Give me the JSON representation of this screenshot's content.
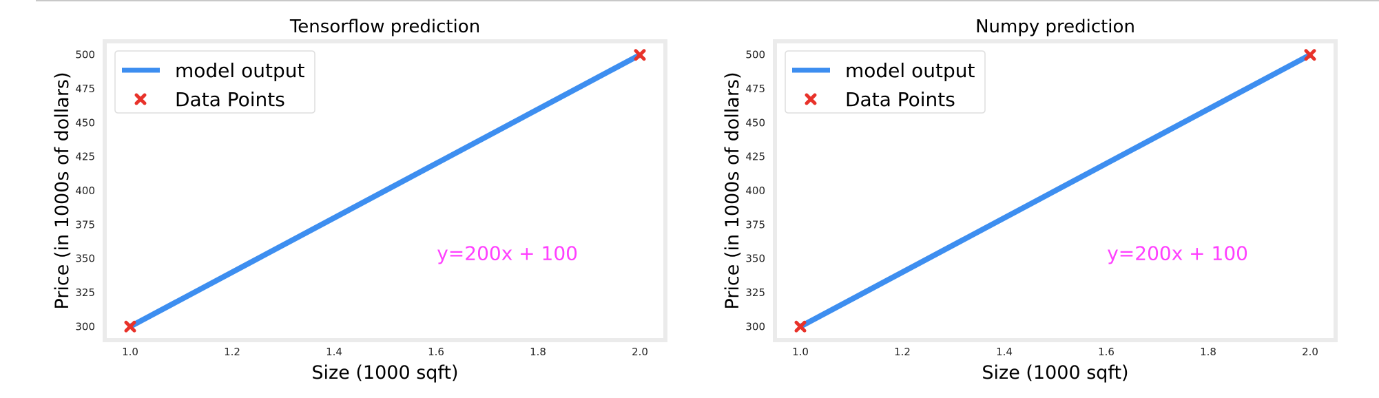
{
  "chart_data": [
    {
      "type": "line",
      "title": "Tensorflow prediction",
      "xlabel": "Size (1000 sqft)",
      "ylabel": "Price (in 1000s of dollars)",
      "xlim": [
        0.95,
        2.05
      ],
      "ylim": [
        290,
        510
      ],
      "xticks": [
        1.0,
        1.2,
        1.4,
        1.6,
        1.8,
        2.0
      ],
      "xtick_labels": [
        "1.0",
        "1.2",
        "1.4",
        "1.6",
        "1.8",
        "2.0"
      ],
      "yticks": [
        300,
        325,
        350,
        375,
        400,
        425,
        450,
        475,
        500
      ],
      "ytick_labels": [
        "300",
        "325",
        "350",
        "375",
        "400",
        "425",
        "450",
        "475",
        "500"
      ],
      "grid": false,
      "legend_position": "top-left",
      "series": [
        {
          "name": "model output",
          "kind": "line",
          "color": "#3d8ef0",
          "x": [
            1.0,
            2.0
          ],
          "y": [
            300,
            500
          ]
        },
        {
          "name": "Data Points",
          "kind": "scatter",
          "marker": "x",
          "color": "#e8322a",
          "x": [
            1.0,
            2.0
          ],
          "y": [
            300,
            500
          ]
        }
      ],
      "annotation": {
        "text": "y=200x + 100",
        "x": 1.74,
        "y": 354,
        "color": "#ff40ff"
      }
    },
    {
      "type": "line",
      "title": "Numpy prediction",
      "xlabel": "Size (1000 sqft)",
      "ylabel": "Price (in 1000s of dollars)",
      "xlim": [
        0.95,
        2.05
      ],
      "ylim": [
        290,
        510
      ],
      "xticks": [
        1.0,
        1.2,
        1.4,
        1.6,
        1.8,
        2.0
      ],
      "xtick_labels": [
        "1.0",
        "1.2",
        "1.4",
        "1.6",
        "1.8",
        "2.0"
      ],
      "yticks": [
        300,
        325,
        350,
        375,
        400,
        425,
        450,
        475,
        500
      ],
      "ytick_labels": [
        "300",
        "325",
        "350",
        "375",
        "400",
        "425",
        "450",
        "475",
        "500"
      ],
      "grid": false,
      "legend_position": "top-left",
      "series": [
        {
          "name": "model output",
          "kind": "line",
          "color": "#3d8ef0",
          "x": [
            1.0,
            2.0
          ],
          "y": [
            300,
            500
          ]
        },
        {
          "name": "Data Points",
          "kind": "scatter",
          "marker": "x",
          "color": "#e8322a",
          "x": [
            1.0,
            2.0
          ],
          "y": [
            300,
            500
          ]
        }
      ],
      "annotation": {
        "text": "y=200x + 100",
        "x": 1.74,
        "y": 354,
        "color": "#ff40ff"
      }
    }
  ]
}
